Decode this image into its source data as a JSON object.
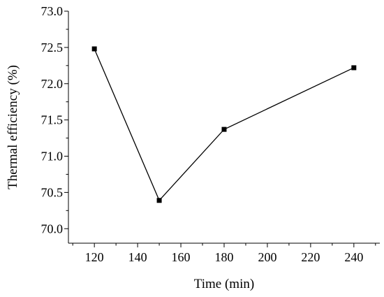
{
  "chart_data": {
    "type": "line",
    "xlabel": "Time (min)",
    "ylabel": "Thermal efficiency (%)",
    "xlim": [
      108,
      252
    ],
    "ylim": [
      69.8,
      73.0
    ],
    "x_ticks": [
      120,
      140,
      160,
      180,
      200,
      220,
      240
    ],
    "x_tick_labels": [
      "120",
      "140",
      "160",
      "180",
      "200",
      "220",
      "240"
    ],
    "y_ticks": [
      70.0,
      70.5,
      71.0,
      71.5,
      72.0,
      72.5,
      73.0
    ],
    "y_tick_labels": [
      "70.0",
      "70.5",
      "71.0",
      "71.5",
      "72.0",
      "72.5",
      "73.0"
    ],
    "marker": "square",
    "grid": false,
    "series": [
      {
        "x": [
          120,
          150,
          180,
          240
        ],
        "y": [
          72.48,
          70.39,
          71.37,
          72.22
        ],
        "color": "#000000"
      }
    ]
  }
}
